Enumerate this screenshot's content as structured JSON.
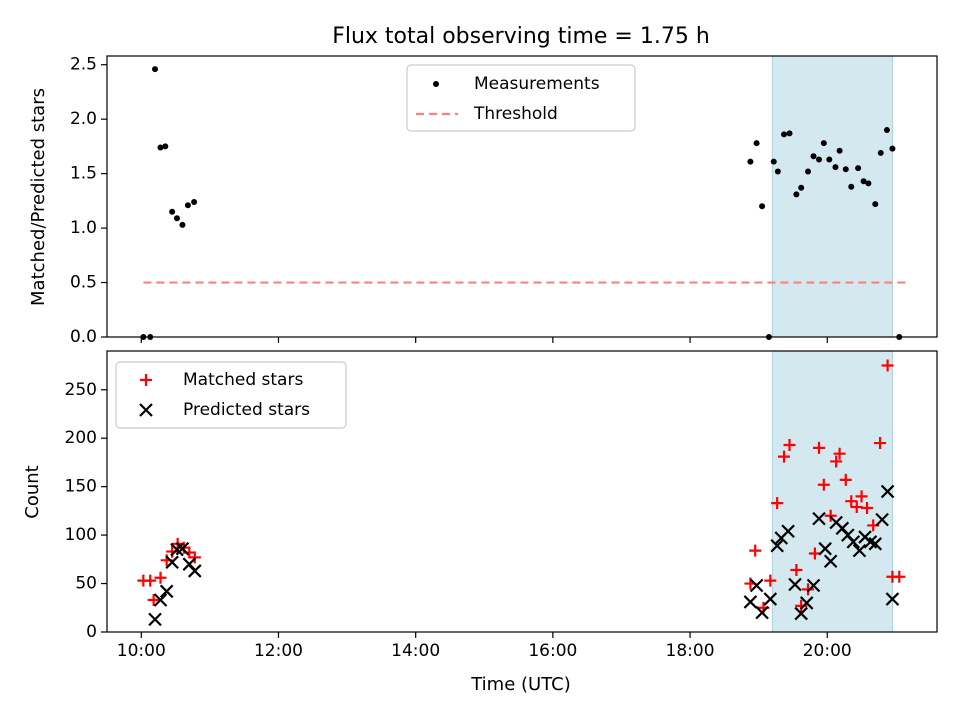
{
  "title": "Flux total observing time = 1.75 h",
  "chart_data": [
    {
      "type": "scatter",
      "ylabel": "Matched/Predicted stars",
      "xlim_hours": [
        9.5,
        21.6
      ],
      "ylim": [
        0,
        2.58
      ],
      "yticks": [
        0.0,
        0.5,
        1.0,
        1.5,
        2.0,
        2.5
      ],
      "ytick_labels": [
        "0.0",
        "0.5",
        "1.0",
        "1.5",
        "2.0",
        "2.5"
      ],
      "legend_position": "upper center",
      "legend": [
        "Measurements",
        "Threshold"
      ],
      "series": [
        {
          "name": "Measurements",
          "marker": "dot",
          "color": "#000000",
          "points": [
            [
              10.03,
              0.0
            ],
            [
              10.13,
              0.0
            ],
            [
              10.2,
              2.46
            ],
            [
              10.28,
              1.74
            ],
            [
              10.35,
              1.75
            ],
            [
              10.45,
              1.15
            ],
            [
              10.52,
              1.09
            ],
            [
              10.6,
              1.03
            ],
            [
              10.68,
              1.21
            ],
            [
              10.77,
              1.24
            ],
            [
              18.88,
              1.61
            ],
            [
              18.97,
              1.78
            ],
            [
              19.05,
              1.2
            ],
            [
              19.15,
              0.0
            ],
            [
              19.22,
              1.61
            ],
            [
              19.28,
              1.52
            ],
            [
              19.37,
              1.86
            ],
            [
              19.45,
              1.87
            ],
            [
              19.55,
              1.31
            ],
            [
              19.62,
              1.37
            ],
            [
              19.72,
              1.52
            ],
            [
              19.8,
              1.66
            ],
            [
              19.88,
              1.63
            ],
            [
              19.95,
              1.78
            ],
            [
              20.03,
              1.63
            ],
            [
              20.12,
              1.56
            ],
            [
              20.18,
              1.71
            ],
            [
              20.27,
              1.54
            ],
            [
              20.35,
              1.38
            ],
            [
              20.45,
              1.55
            ],
            [
              20.53,
              1.43
            ],
            [
              20.6,
              1.41
            ],
            [
              20.7,
              1.22
            ],
            [
              20.78,
              1.69
            ],
            [
              20.87,
              1.9
            ],
            [
              20.95,
              1.73
            ],
            [
              21.05,
              0.0
            ]
          ]
        },
        {
          "name": "Threshold",
          "style": "dashed",
          "color": "#ff7f7f",
          "x_range": [
            10.03,
            21.15
          ],
          "y": 0.5
        }
      ],
      "shaded_span_hours": [
        19.2,
        20.95
      ],
      "shade_color": "#d3e9ef"
    },
    {
      "type": "scatter",
      "ylabel": "Count",
      "xlabel": "Time (UTC)",
      "xlim_hours": [
        9.5,
        21.6
      ],
      "ylim": [
        0,
        290
      ],
      "yticks": [
        0,
        50,
        100,
        150,
        200,
        250
      ],
      "xticks_hours": [
        10,
        12,
        14,
        16,
        18,
        20
      ],
      "xtick_labels": [
        "10:00",
        "12:00",
        "14:00",
        "16:00",
        "18:00",
        "20:00"
      ],
      "legend_position": "upper left",
      "legend": [
        "Matched stars",
        "Predicted stars"
      ],
      "series": [
        {
          "name": "Matched stars",
          "marker": "plus",
          "color": "#ff0000",
          "points": [
            [
              10.03,
              53
            ],
            [
              10.13,
              53
            ],
            [
              10.18,
              33
            ],
            [
              10.28,
              56
            ],
            [
              10.37,
              74
            ],
            [
              10.45,
              83
            ],
            [
              10.53,
              91
            ],
            [
              10.62,
              87
            ],
            [
              10.7,
              82
            ],
            [
              10.78,
              77
            ],
            [
              18.88,
              50
            ],
            [
              18.95,
              84
            ],
            [
              19.07,
              25
            ],
            [
              19.17,
              53
            ],
            [
              19.27,
              133
            ],
            [
              19.37,
              181
            ],
            [
              19.45,
              193
            ],
            [
              19.55,
              64
            ],
            [
              19.62,
              27
            ],
            [
              19.72,
              44
            ],
            [
              19.82,
              81
            ],
            [
              19.88,
              190
            ],
            [
              19.95,
              152
            ],
            [
              20.05,
              120
            ],
            [
              20.13,
              176
            ],
            [
              20.18,
              184
            ],
            [
              20.27,
              157
            ],
            [
              20.35,
              135
            ],
            [
              20.43,
              129
            ],
            [
              20.5,
              140
            ],
            [
              20.58,
              128
            ],
            [
              20.67,
              110
            ],
            [
              20.77,
              195
            ],
            [
              20.88,
              275
            ],
            [
              20.95,
              57
            ],
            [
              21.05,
              57
            ]
          ]
        },
        {
          "name": "Predicted stars",
          "marker": "x",
          "color": "#000000",
          "points": [
            [
              10.2,
              13
            ],
            [
              10.28,
              33
            ],
            [
              10.37,
              42
            ],
            [
              10.45,
              72
            ],
            [
              10.52,
              85
            ],
            [
              10.6,
              86
            ],
            [
              10.7,
              70
            ],
            [
              10.78,
              63
            ],
            [
              18.88,
              31
            ],
            [
              18.97,
              48
            ],
            [
              19.05,
              20
            ],
            [
              19.17,
              34
            ],
            [
              19.27,
              89
            ],
            [
              19.33,
              97
            ],
            [
              19.43,
              104
            ],
            [
              19.53,
              49
            ],
            [
              19.62,
              19
            ],
            [
              19.7,
              30
            ],
            [
              19.8,
              48
            ],
            [
              19.88,
              117
            ],
            [
              19.97,
              86
            ],
            [
              20.05,
              73
            ],
            [
              20.13,
              113
            ],
            [
              20.22,
              107
            ],
            [
              20.3,
              100
            ],
            [
              20.38,
              93
            ],
            [
              20.47,
              84
            ],
            [
              20.55,
              98
            ],
            [
              20.63,
              93
            ],
            [
              20.7,
              91
            ],
            [
              20.8,
              116
            ],
            [
              20.88,
              145
            ],
            [
              20.95,
              34
            ]
          ]
        }
      ],
      "shaded_span_hours": [
        19.2,
        20.95
      ],
      "shade_color": "#d3e9ef"
    }
  ]
}
